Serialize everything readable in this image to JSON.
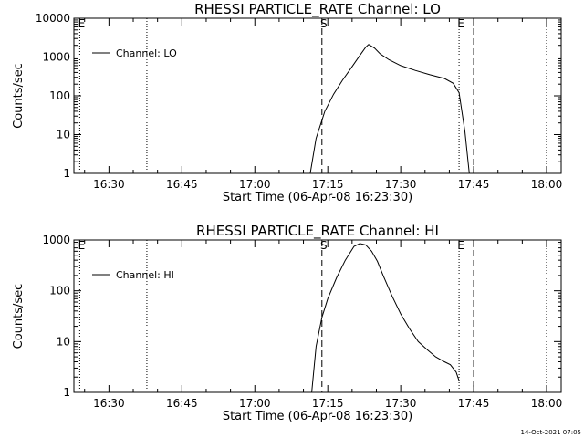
{
  "footer": {
    "timestamp": "14-Oct-2021 07:05"
  },
  "chart_data": [
    {
      "type": "line",
      "title": "RHESSI PARTICLE_RATE Channel: LO",
      "xlabel": "Start Time (06-Apr-08 16:23:30)",
      "ylabel": "Counts/sec",
      "yscale": "log",
      "xlim": [
        16.38,
        18.05
      ],
      "ylim": [
        1,
        10000
      ],
      "xticks": [
        {
          "value": 16.5,
          "label": "16:30"
        },
        {
          "value": 16.75,
          "label": "16:45"
        },
        {
          "value": 17.0,
          "label": "17:00"
        },
        {
          "value": 17.25,
          "label": "17:15"
        },
        {
          "value": 17.5,
          "label": "17:30"
        },
        {
          "value": 17.75,
          "label": "17:45"
        },
        {
          "value": 18.0,
          "label": "18:00"
        }
      ],
      "yticks": [
        {
          "value": 1,
          "label": "1"
        },
        {
          "value": 10,
          "label": "10"
        },
        {
          "value": 100,
          "label": "100"
        },
        {
          "value": 1000,
          "label": "1000"
        },
        {
          "value": 10000,
          "label": "10000"
        }
      ],
      "legend": {
        "label": "Channel: LO",
        "position": "top-left"
      },
      "markers": [
        {
          "x": 16.4,
          "label": "E",
          "style": "dotted"
        },
        {
          "x": 16.63,
          "label": "",
          "style": "dotted"
        },
        {
          "x": 17.23,
          "label": "S",
          "style": "dashed"
        },
        {
          "x": 17.7,
          "label": "E",
          "style": "dotted"
        },
        {
          "x": 17.75,
          "label": "",
          "style": "dashed"
        },
        {
          "x": 18.0,
          "label": "",
          "style": "dotted"
        }
      ],
      "series": [
        {
          "name": "Channel: LO",
          "x": [
            17.19,
            17.21,
            17.24,
            17.27,
            17.3,
            17.33,
            17.36,
            17.38,
            17.39,
            17.41,
            17.43,
            17.46,
            17.5,
            17.55,
            17.6,
            17.65,
            17.68,
            17.7,
            17.72,
            17.735
          ],
          "y": [
            1,
            8,
            40,
            110,
            250,
            520,
            1100,
            1800,
            2100,
            1700,
            1200,
            850,
            600,
            450,
            350,
            280,
            210,
            120,
            12,
            1
          ]
        }
      ]
    },
    {
      "type": "line",
      "title": "RHESSI PARTICLE_RATE Channel: HI",
      "xlabel": "Start Time (06-Apr-08 16:23:30)",
      "ylabel": "Counts/sec",
      "yscale": "log",
      "xlim": [
        16.38,
        18.05
      ],
      "ylim": [
        1,
        1000
      ],
      "xticks": [
        {
          "value": 16.5,
          "label": "16:30"
        },
        {
          "value": 16.75,
          "label": "16:45"
        },
        {
          "value": 17.0,
          "label": "17:00"
        },
        {
          "value": 17.25,
          "label": "17:15"
        },
        {
          "value": 17.5,
          "label": "17:30"
        },
        {
          "value": 17.75,
          "label": "17:45"
        },
        {
          "value": 18.0,
          "label": "18:00"
        }
      ],
      "yticks": [
        {
          "value": 1,
          "label": "1"
        },
        {
          "value": 10,
          "label": "10"
        },
        {
          "value": 100,
          "label": "100"
        },
        {
          "value": 1000,
          "label": "1000"
        }
      ],
      "legend": {
        "label": "Channel: HI",
        "position": "top-left"
      },
      "markers": [
        {
          "x": 16.4,
          "label": "E",
          "style": "dotted"
        },
        {
          "x": 16.63,
          "label": "",
          "style": "dotted"
        },
        {
          "x": 17.23,
          "label": "S",
          "style": "dashed"
        },
        {
          "x": 17.7,
          "label": "E",
          "style": "dotted"
        },
        {
          "x": 17.75,
          "label": "",
          "style": "dashed"
        },
        {
          "x": 18.0,
          "label": "",
          "style": "dotted"
        }
      ],
      "series": [
        {
          "name": "Channel: HI",
          "x": [
            17.195,
            17.21,
            17.23,
            17.25,
            17.28,
            17.31,
            17.34,
            17.36,
            17.38,
            17.4,
            17.42,
            17.44,
            17.47,
            17.5,
            17.53,
            17.56,
            17.59,
            17.62,
            17.65,
            17.67,
            17.69,
            17.7
          ],
          "y": [
            1,
            8,
            30,
            70,
            180,
            400,
            750,
            850,
            800,
            600,
            380,
            200,
            80,
            35,
            18,
            10,
            7,
            5,
            4,
            3.5,
            2.5,
            1.7
          ]
        }
      ]
    }
  ]
}
